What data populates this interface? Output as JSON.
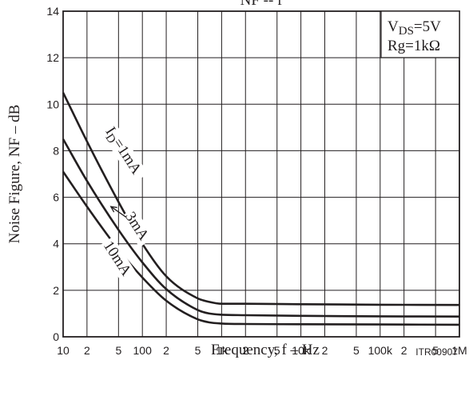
{
  "chart_data": {
    "type": "line",
    "title": "NF -- f",
    "xlabel": "Frequency, f  –  Hz",
    "ylabel": "Noise Figure, NF  –  dB",
    "x_scale": "log",
    "xlim": [
      10,
      1000000
    ],
    "ylim": [
      0,
      14
    ],
    "grid": true,
    "x_tick_labels": [
      {
        "value": 10,
        "label": "10"
      },
      {
        "value": 20,
        "label": "2"
      },
      {
        "value": 50,
        "label": "5"
      },
      {
        "value": 100,
        "label": "100"
      },
      {
        "value": 200,
        "label": "2"
      },
      {
        "value": 500,
        "label": "5"
      },
      {
        "value": 1000,
        "label": "1k"
      },
      {
        "value": 2000,
        "label": "2"
      },
      {
        "value": 5000,
        "label": "5"
      },
      {
        "value": 10000,
        "label": "10k"
      },
      {
        "value": 20000,
        "label": "2"
      },
      {
        "value": 50000,
        "label": "5"
      },
      {
        "value": 100000,
        "label": "100k"
      },
      {
        "value": 200000,
        "label": "2"
      },
      {
        "value": 500000,
        "label": "5"
      },
      {
        "value": 1000000,
        "label": "1M"
      }
    ],
    "y_ticks": [
      0,
      2,
      4,
      6,
      8,
      10,
      12,
      14
    ],
    "conditions": [
      "V",
      "DS",
      "=5V",
      "Rg=1kΩ"
    ],
    "series": [
      {
        "name": "I_D=1mA",
        "label_main": "I",
        "label_sub": "D",
        "label_rest": "=1mA",
        "x": [
          10,
          20,
          50,
          100,
          200,
          500,
          700,
          1000,
          2000,
          10000,
          100000,
          1000000
        ],
        "y": [
          10.5,
          8.4,
          5.8,
          4.0,
          2.6,
          1.65,
          1.5,
          1.42,
          1.42,
          1.4,
          1.38,
          1.37
        ]
      },
      {
        "name": "3mA",
        "label": "3mA",
        "x": [
          10,
          20,
          50,
          100,
          200,
          500,
          700,
          1000,
          2000,
          10000,
          100000,
          1000000
        ],
        "y": [
          8.5,
          6.7,
          4.6,
          3.2,
          2.05,
          1.15,
          1.0,
          0.95,
          0.93,
          0.9,
          0.88,
          0.87
        ]
      },
      {
        "name": "10mA",
        "label": "10mA",
        "x": [
          10,
          20,
          50,
          100,
          200,
          500,
          700,
          1000,
          2000,
          10000,
          100000,
          1000000
        ],
        "y": [
          7.1,
          5.6,
          3.75,
          2.55,
          1.55,
          0.75,
          0.62,
          0.57,
          0.55,
          0.54,
          0.53,
          0.52
        ]
      }
    ],
    "code": "ITR00907"
  }
}
